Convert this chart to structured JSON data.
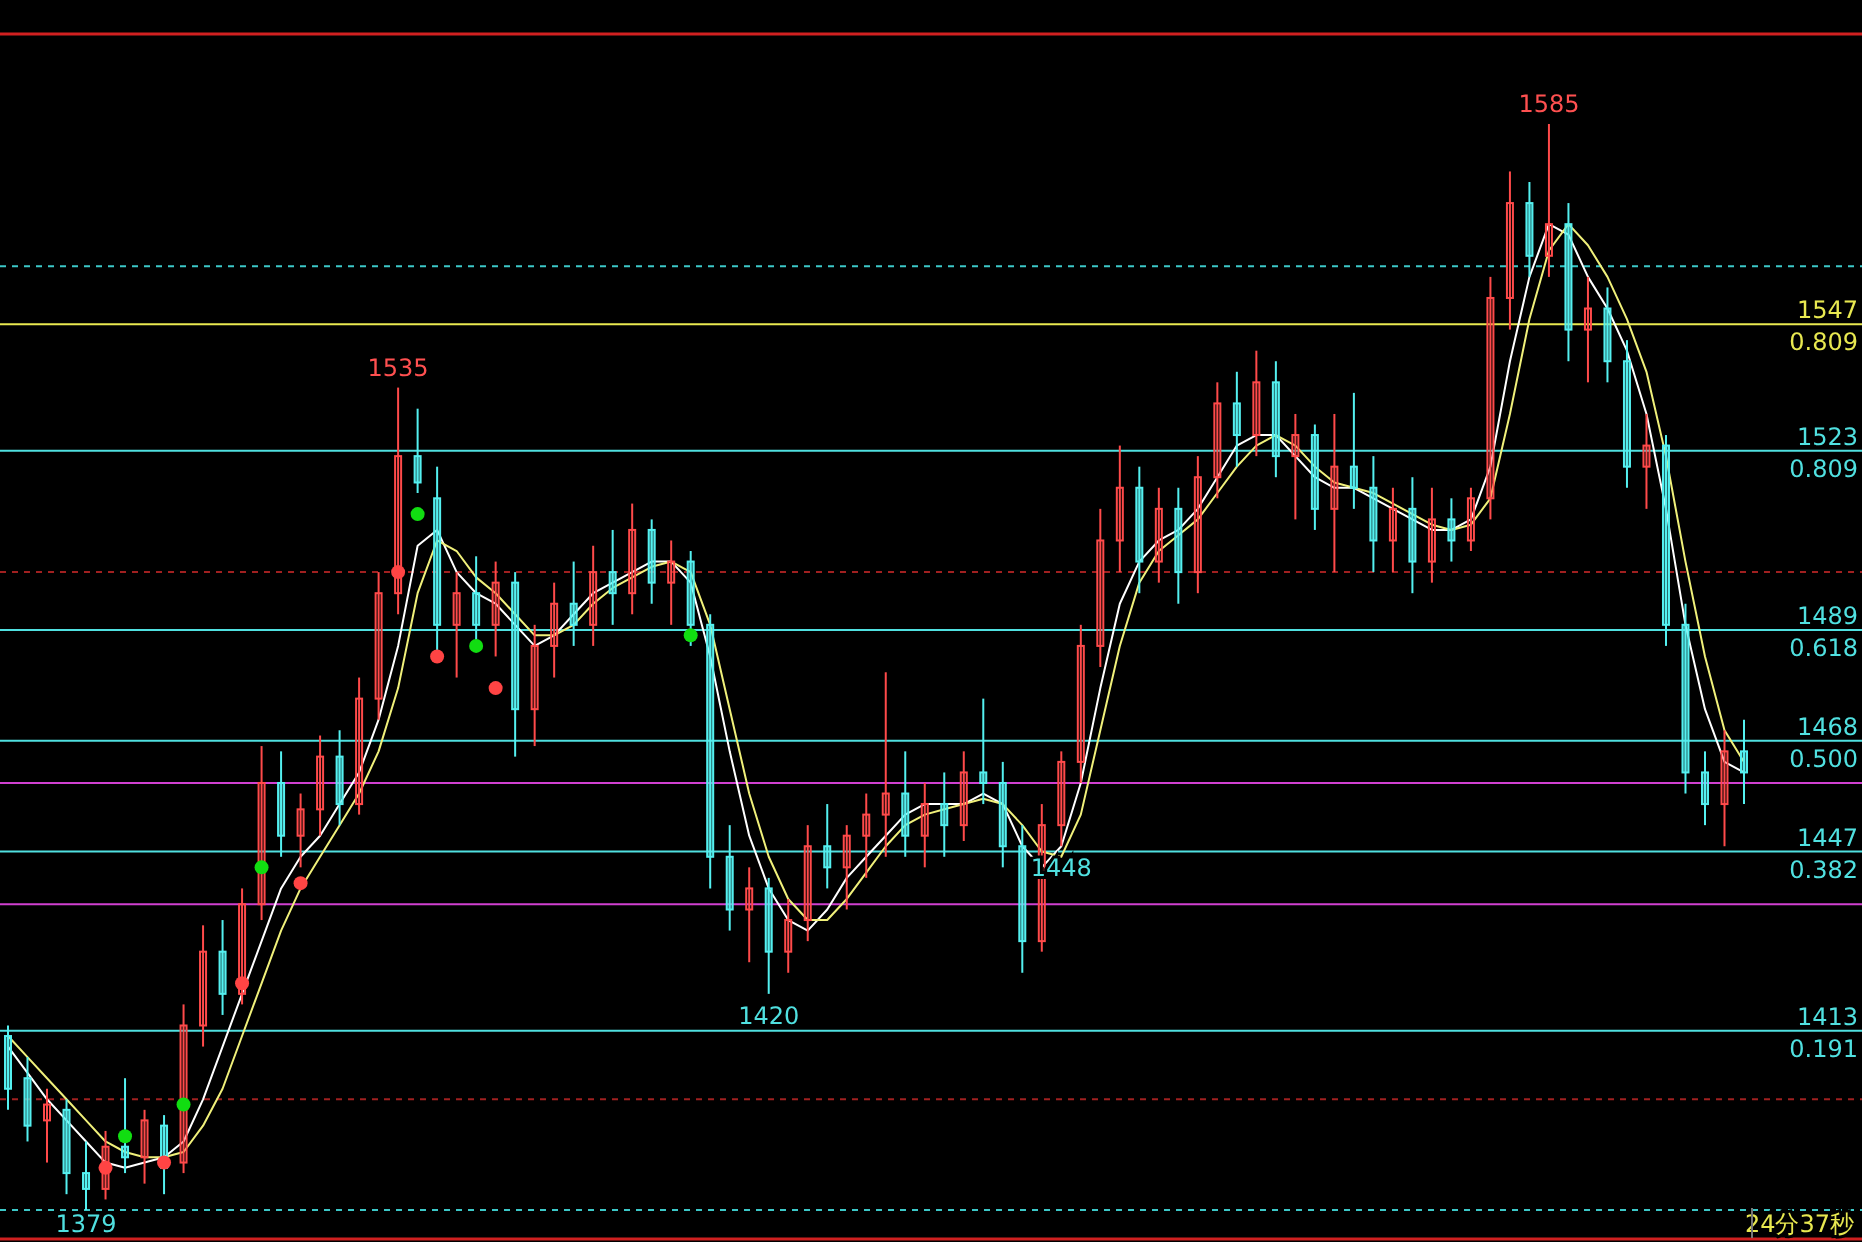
{
  "chart_data": {
    "type": "candlestick",
    "categories": [
      null,
      null,
      null,
      null,
      null,
      null,
      null,
      null,
      null,
      null,
      null,
      null,
      null,
      null,
      null,
      null,
      null,
      null,
      null,
      null,
      null,
      null,
      null,
      null,
      null,
      null,
      null,
      null,
      null,
      null,
      null,
      null,
      null,
      null,
      null,
      null,
      null,
      null,
      null,
      null,
      null,
      null,
      null,
      null,
      null,
      null,
      null,
      null,
      null,
      null,
      null,
      null,
      null,
      null,
      null,
      null,
      null,
      null,
      null,
      null,
      null,
      null,
      null,
      null,
      null,
      null,
      null,
      null,
      null,
      null,
      null,
      null,
      null,
      null,
      null,
      null,
      null,
      null,
      null,
      null,
      null,
      null,
      null,
      null,
      null,
      null,
      null,
      null,
      null,
      null
    ],
    "ohlc": [
      [
        1412,
        1414,
        1398,
        1402
      ],
      [
        1404,
        1408,
        1392,
        1395
      ],
      [
        1396,
        1402,
        1388,
        1399
      ],
      [
        1398,
        1400,
        1382,
        1386
      ],
      [
        1386,
        1392,
        1379,
        1383
      ],
      [
        1383,
        1394,
        1381,
        1391
      ],
      [
        1391,
        1404,
        1386,
        1389
      ],
      [
        1389,
        1398,
        1384,
        1396
      ],
      [
        1395,
        1397,
        1382,
        1387
      ],
      [
        1388,
        1418,
        1386,
        1414
      ],
      [
        1414,
        1433,
        1410,
        1428
      ],
      [
        1428,
        1434,
        1416,
        1420
      ],
      [
        1420,
        1440,
        1418,
        1437
      ],
      [
        1437,
        1467,
        1434,
        1460
      ],
      [
        1460,
        1466,
        1446,
        1450
      ],
      [
        1450,
        1458,
        1444,
        1455
      ],
      [
        1455,
        1469,
        1450,
        1465
      ],
      [
        1465,
        1470,
        1452,
        1456
      ],
      [
        1456,
        1480,
        1454,
        1476
      ],
      [
        1476,
        1500,
        1472,
        1496
      ],
      [
        1496,
        1535,
        1492,
        1522
      ],
      [
        1522,
        1531,
        1515,
        1517
      ],
      [
        1514,
        1520,
        1485,
        1490
      ],
      [
        1490,
        1500,
        1480,
        1496
      ],
      [
        1496,
        1503,
        1486,
        1490
      ],
      [
        1490,
        1502,
        1484,
        1498
      ],
      [
        1498,
        1500,
        1465,
        1474
      ],
      [
        1474,
        1490,
        1467,
        1486
      ],
      [
        1486,
        1498,
        1480,
        1494
      ],
      [
        1494,
        1502,
        1486,
        1490
      ],
      [
        1490,
        1505,
        1486,
        1500
      ],
      [
        1500,
        1508,
        1490,
        1496
      ],
      [
        1496,
        1513,
        1492,
        1508
      ],
      [
        1508,
        1510,
        1494,
        1498
      ],
      [
        1498,
        1506,
        1490,
        1502
      ],
      [
        1502,
        1504,
        1486,
        1490
      ],
      [
        1490,
        1492,
        1440,
        1446
      ],
      [
        1446,
        1452,
        1432,
        1436
      ],
      [
        1436,
        1444,
        1426,
        1440
      ],
      [
        1440,
        1442,
        1420,
        1428
      ],
      [
        1428,
        1438,
        1424,
        1434
      ],
      [
        1434,
        1452,
        1430,
        1448
      ],
      [
        1448,
        1456,
        1440,
        1444
      ],
      [
        1444,
        1452,
        1436,
        1450
      ],
      [
        1450,
        1458,
        1442,
        1454
      ],
      [
        1454,
        1481,
        1446,
        1458
      ],
      [
        1458,
        1466,
        1446,
        1450
      ],
      [
        1450,
        1460,
        1444,
        1456
      ],
      [
        1456,
        1462,
        1446,
        1452
      ],
      [
        1452,
        1466,
        1449,
        1462
      ],
      [
        1462,
        1476,
        1456,
        1460
      ],
      [
        1460,
        1464,
        1444,
        1448
      ],
      [
        1448,
        1452,
        1424,
        1430
      ],
      [
        1430,
        1456,
        1428,
        1452
      ],
      [
        1452,
        1466,
        1448,
        1464
      ],
      [
        1464,
        1490,
        1460,
        1486
      ],
      [
        1486,
        1512,
        1482,
        1506
      ],
      [
        1506,
        1524,
        1500,
        1516
      ],
      [
        1516,
        1520,
        1496,
        1502
      ],
      [
        1502,
        1516,
        1498,
        1512
      ],
      [
        1512,
        1516,
        1494,
        1500
      ],
      [
        1500,
        1522,
        1496,
        1518
      ],
      [
        1518,
        1536,
        1514,
        1532
      ],
      [
        1532,
        1538,
        1520,
        1526
      ],
      [
        1526,
        1542,
        1522,
        1536
      ],
      [
        1536,
        1540,
        1518,
        1522
      ],
      [
        1522,
        1530,
        1510,
        1526
      ],
      [
        1526,
        1528,
        1508,
        1512
      ],
      [
        1512,
        1530,
        1500,
        1520
      ],
      [
        1520,
        1534,
        1512,
        1516
      ],
      [
        1516,
        1522,
        1500,
        1506
      ],
      [
        1506,
        1516,
        1500,
        1512
      ],
      [
        1512,
        1518,
        1496,
        1502
      ],
      [
        1502,
        1516,
        1498,
        1510
      ],
      [
        1510,
        1514,
        1502,
        1506
      ],
      [
        1506,
        1516,
        1504,
        1514
      ],
      [
        1514,
        1556,
        1510,
        1552
      ],
      [
        1552,
        1576,
        1546,
        1570
      ],
      [
        1570,
        1574,
        1556,
        1560
      ],
      [
        1560,
        1585,
        1556,
        1566
      ],
      [
        1566,
        1570,
        1540,
        1546
      ],
      [
        1546,
        1556,
        1536,
        1550
      ],
      [
        1550,
        1554,
        1536,
        1540
      ],
      [
        1540,
        1544,
        1516,
        1520
      ],
      [
        1520,
        1530,
        1512,
        1524
      ],
      [
        1524,
        1526,
        1486,
        1490
      ],
      [
        1490,
        1494,
        1458,
        1462
      ],
      [
        1462,
        1466,
        1452,
        1456
      ],
      [
        1456,
        1470,
        1448,
        1466
      ],
      [
        1466,
        1472,
        1456,
        1462
      ]
    ],
    "series": [
      {
        "type": "line",
        "color": "#ffffff",
        "values": [
          1410,
          1405,
          1400,
          1396,
          1392,
          1388,
          1387,
          1388,
          1389,
          1392,
          1400,
          1410,
          1420,
          1430,
          1440,
          1446,
          1450,
          1456,
          1462,
          1472,
          1486,
          1505,
          1508,
          1500,
          1496,
          1494,
          1490,
          1486,
          1488,
          1492,
          1496,
          1498,
          1500,
          1502,
          1502,
          1498,
          1484,
          1466,
          1450,
          1440,
          1434,
          1432,
          1436,
          1442,
          1446,
          1450,
          1454,
          1456,
          1456,
          1456,
          1458,
          1456,
          1448,
          1444,
          1448,
          1460,
          1478,
          1494,
          1502,
          1506,
          1508,
          1512,
          1518,
          1524,
          1526,
          1526,
          1522,
          1518,
          1516,
          1516,
          1514,
          1512,
          1510,
          1508,
          1508,
          1510,
          1520,
          1540,
          1556,
          1566,
          1564,
          1556,
          1550,
          1542,
          1530,
          1512,
          1490,
          1474,
          1464,
          1462
        ]
      },
      {
        "type": "line",
        "color": "#f0f07a",
        "values": [
          1412,
          1408,
          1404,
          1400,
          1396,
          1392,
          1390,
          1389,
          1389,
          1390,
          1395,
          1402,
          1412,
          1422,
          1432,
          1440,
          1446,
          1452,
          1458,
          1466,
          1478,
          1496,
          1506,
          1504,
          1499,
          1496,
          1492,
          1488,
          1488,
          1490,
          1494,
          1497,
          1499,
          1501,
          1502,
          1500,
          1490,
          1474,
          1458,
          1446,
          1438,
          1434,
          1434,
          1438,
          1443,
          1448,
          1452,
          1454,
          1455,
          1456,
          1457,
          1456,
          1452,
          1447,
          1446,
          1454,
          1470,
          1486,
          1498,
          1504,
          1507,
          1510,
          1515,
          1520,
          1524,
          1526,
          1524,
          1520,
          1517,
          1516,
          1515,
          1513,
          1511,
          1509,
          1508,
          1509,
          1514,
          1530,
          1548,
          1561,
          1566,
          1562,
          1556,
          1548,
          1538,
          1522,
          1502,
          1484,
          1470,
          1464
        ]
      },
      {
        "type": "scatter",
        "color": "#11dd11",
        "values": [
          null,
          null,
          null,
          null,
          null,
          null,
          1393,
          null,
          null,
          1399,
          null,
          null,
          null,
          1444,
          null,
          null,
          null,
          null,
          null,
          null,
          null,
          1511,
          null,
          null,
          1486,
          null,
          null,
          null,
          null,
          null,
          null,
          null,
          null,
          null,
          null,
          1488,
          null,
          null,
          null,
          null,
          null,
          null,
          null,
          null,
          null,
          null,
          null,
          null,
          null,
          null,
          null,
          null,
          null,
          null,
          null,
          null,
          null,
          null,
          null,
          null,
          null,
          null,
          null,
          null,
          null,
          null,
          null,
          null,
          null,
          null,
          null,
          null,
          null,
          null,
          null,
          null,
          null,
          null,
          null,
          null,
          null,
          null,
          null,
          null,
          null,
          null,
          null,
          null,
          null,
          null
        ]
      },
      {
        "type": "scatter",
        "color": "#ff4444",
        "values": [
          null,
          null,
          null,
          null,
          null,
          1387,
          null,
          null,
          1388,
          null,
          null,
          null,
          1422,
          null,
          null,
          1441,
          null,
          null,
          null,
          null,
          1500,
          null,
          1484,
          null,
          null,
          1478,
          null,
          null,
          null,
          null,
          null,
          null,
          null,
          null,
          null,
          null,
          null,
          null,
          null,
          null,
          null,
          null,
          null,
          null,
          null,
          null,
          null,
          null,
          null,
          null,
          null,
          null,
          null,
          null,
          null,
          null,
          null,
          null,
          null,
          null,
          null,
          null,
          null,
          null,
          null,
          null,
          null,
          null,
          null,
          null,
          null,
          null,
          null,
          null,
          null,
          null,
          null,
          null,
          null,
          null,
          null,
          null,
          null,
          null,
          null,
          null,
          null,
          null,
          null,
          null
        ]
      }
    ],
    "ref_lines": [
      {
        "axis": "y",
        "value": 1558,
        "color": "#3cc8c8",
        "line_style": "dashed"
      },
      {
        "axis": "y",
        "value": 1547,
        "label": "1547",
        "color": "#e8e850"
      },
      {
        "axis": "y",
        "value": 1523,
        "label": "1523",
        "color": "#50e0e0"
      },
      {
        "axis": "y",
        "value": 1500,
        "color": "#a02020",
        "line_style": "dashed"
      },
      {
        "axis": "y",
        "value": 1489,
        "label": "1489",
        "color": "#50e0e0"
      },
      {
        "axis": "y",
        "value": 1468,
        "label": "1468",
        "color": "#50e0e0"
      },
      {
        "axis": "y",
        "value": 1460,
        "color": "#d040d0"
      },
      {
        "axis": "y",
        "value": 1447,
        "label": "1447",
        "color": "#50e0e0"
      },
      {
        "axis": "y",
        "value": 1437,
        "color": "#d040d0"
      },
      {
        "axis": "y",
        "value": 1413,
        "label": "1413",
        "color": "#50e0e0"
      },
      {
        "axis": "y",
        "value": 1400,
        "color": "#a02020",
        "line_style": "dashed"
      },
      {
        "axis": "y",
        "value": 1379,
        "color": "#3cc8c8",
        "line_style": "dashed"
      }
    ],
    "annotations": [
      {
        "text": "1585",
        "y": 1585
      },
      {
        "text": "1535",
        "y": 1535
      },
      {
        "text": "1420",
        "y": 1420
      },
      {
        "text": "1448",
        "y": 1448
      },
      {
        "text": "1379",
        "y": 1379
      },
      {
        "text": "0.809",
        "y": 1547
      },
      {
        "text": "0.809",
        "y": 1523
      },
      {
        "text": "0.618",
        "y": 1489
      },
      {
        "text": "0.500",
        "y": 1468
      },
      {
        "text": "0.382",
        "y": 1447
      },
      {
        "text": "0.191",
        "y": 1413
      },
      "24分37秒"
    ]
  }
}
